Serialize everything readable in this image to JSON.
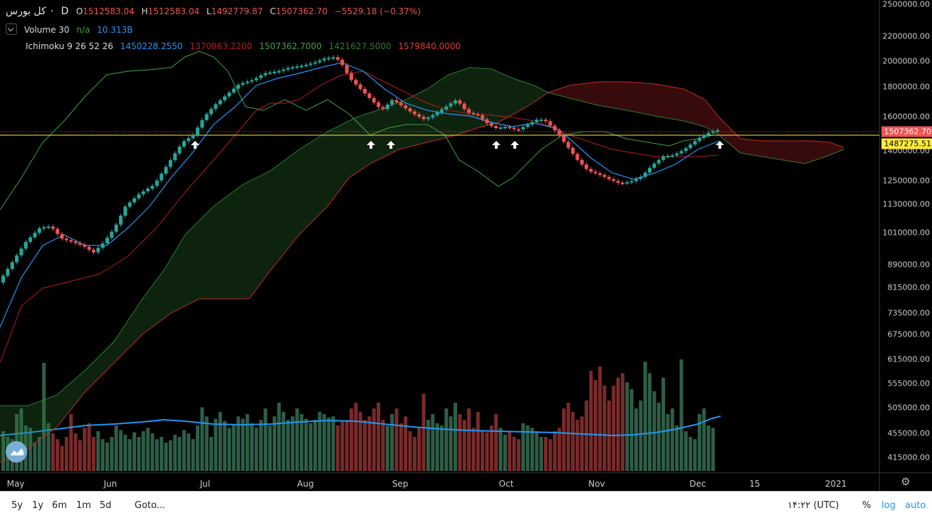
{
  "legend": {
    "symbol": "کل بورس",
    "dot": "·",
    "interval": "D",
    "ohlc": {
      "o_label": "O",
      "o_value": "1512583.04",
      "h_label": "H",
      "h_value": "1512583.04",
      "l_label": "L",
      "l_value": "1492779.87",
      "c_label": "C",
      "c_value": "1507362.70",
      "change": "−5529.18 (−0.37%)"
    },
    "volume": {
      "label": "Volume 30",
      "value1": "n/a",
      "value2": "10.313B"
    },
    "ichimoku": {
      "label": "Ichimoku 9 26 52 26",
      "conversion": "1450228.2550",
      "base": "1370963.2200",
      "lagging": "1507362.7000",
      "span_a": "1421627.5000",
      "span_b": "1579840.0000"
    }
  },
  "price_axis": {
    "ticks": [
      "2500000.00",
      "2200000.00",
      "2000000.00",
      "1800000.00",
      "1600000.00",
      "1400000.00",
      "1250000.00",
      "1130000.00",
      "1010000.00",
      "890000.00",
      "815000.00",
      "735000.00",
      "675000.00",
      "615000.00",
      "555000.00",
      "505000.00",
      "455000.00",
      "415000.00"
    ],
    "last_price": "1507362.70",
    "hline_price": "1487275.51"
  },
  "time_axis": {
    "labels": [
      "May",
      "Jun",
      "Jul",
      "Aug",
      "Sep",
      "Oct",
      "Nov",
      "Dec",
      "15",
      "2021"
    ]
  },
  "bottom_bar": {
    "ranges": [
      "5y",
      "1y",
      "6m",
      "1m",
      "5d"
    ],
    "goto": "Goto...",
    "time": "۱۴:۲۲ (UTC)",
    "percent": "%",
    "log": "log",
    "auto": "auto"
  },
  "colors": {
    "up": "#26a69a",
    "down": "#ef5350",
    "conversion": "#2196f3",
    "base": "#b71c1c",
    "lagging": "#43a047",
    "span_a": "#2e7d32",
    "span_b": "#c62828",
    "volume_ma": "#2196f3",
    "hline": "#ffeb3b"
  },
  "icons": {
    "collapse": "chevron-down-icon",
    "settings": "gear-icon",
    "logo": "tradingview-logo"
  }
}
